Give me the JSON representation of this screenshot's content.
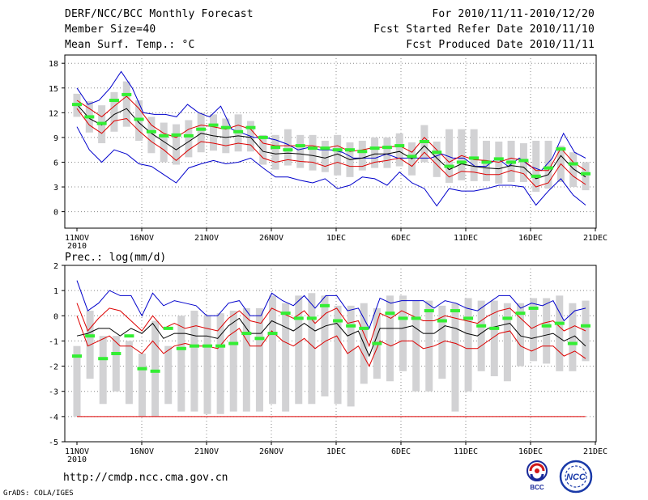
{
  "header": {
    "left": [
      "DERF/NCC/BCC Monthly Forecast",
      "Member Size=40",
      "Mean Surf. Temp.: °C"
    ],
    "right": [
      "For 2010/11/11-2010/12/20",
      "Fcst Started Refer Date 2010/11/10",
      "Fcst Produced Date 2010/11/11"
    ]
  },
  "footer": {
    "url": "http://cmdp.ncc.cma.gov.cn",
    "credit": "GrADS: COLA/IGES"
  },
  "logos": {
    "bcc": "BCC",
    "ncc": "NCC"
  },
  "colors": {
    "box": "#d2d2d4",
    "envelope": "#0000cc",
    "spread": "#dd0000",
    "mean": "#000000",
    "observed": "#33ee33",
    "grid": "#888888"
  },
  "chart_data": [
    {
      "type": "line",
      "title": "Mean Surf. Temp.: °C",
      "x_tick_labels": [
        "11NOV",
        "16NOV",
        "21NOV",
        "26NOV",
        "1DEC",
        "6DEC",
        "11DEC",
        "16DEC",
        "21DEC"
      ],
      "x_year_label": "2010",
      "ylim": [
        -2,
        19
      ],
      "yticks": [
        0,
        3,
        6,
        9,
        12,
        15,
        18
      ],
      "series": [
        {
          "name": "max",
          "values": [
            15,
            13,
            13.5,
            15,
            17,
            15,
            12,
            11.8,
            11.8,
            11.5,
            13,
            12,
            11.5,
            12.8,
            10,
            9.5,
            9,
            9,
            8.7,
            8.2,
            7.5,
            7.8,
            7.5,
            7.5,
            7.2,
            6.5,
            6.5,
            6.5,
            7,
            6.5,
            6.5,
            6.5,
            6.5,
            7,
            6.5,
            6.5,
            5.5,
            5.5,
            6.5,
            5.5,
            6.5,
            5.5,
            5,
            6.5,
            9.5,
            7.2,
            6.5
          ]
        },
        {
          "name": "upper",
          "values": [
            13.5,
            12.5,
            11.5,
            12.8,
            14,
            12.5,
            10.5,
            9.5,
            9,
            10,
            10.5,
            10.3,
            10,
            10.5,
            10,
            8.3,
            8,
            8,
            8,
            8,
            7.7,
            8,
            7.3,
            7.5,
            7.8,
            7.8,
            8,
            7.2,
            9,
            7.5,
            6,
            6.8,
            6.3,
            6.2,
            6,
            6.5,
            6.2,
            5,
            5,
            7.7,
            6,
            5
          ]
        },
        {
          "name": "mean",
          "values": [
            13,
            11.3,
            10.5,
            11.8,
            12.5,
            10.8,
            9.5,
            8.5,
            7.5,
            8.5,
            9.5,
            9.2,
            9,
            9.2,
            9,
            7.3,
            7,
            7.1,
            7,
            6.8,
            6.5,
            7,
            6.3,
            6.5,
            7,
            7,
            7.3,
            6.4,
            8,
            6.5,
            5.1,
            5.8,
            5.5,
            5.3,
            5.2,
            5.6,
            5.4,
            4,
            4.5,
            6.8,
            5.2,
            4.2
          ]
        },
        {
          "name": "lower",
          "values": [
            12.5,
            10.5,
            9.5,
            11,
            11.3,
            9.8,
            8.5,
            7.5,
            6.2,
            7.5,
            8.5,
            8.3,
            8,
            8.3,
            8.1,
            6.5,
            6,
            6.3,
            6.1,
            6,
            5.5,
            6,
            5.5,
            5.5,
            6,
            6.2,
            6.5,
            5.5,
            7.2,
            5.7,
            4.2,
            4.9,
            4.8,
            4.5,
            4.5,
            5,
            4.6,
            3,
            3.5,
            5.8,
            4.3,
            3.3
          ]
        },
        {
          "name": "min",
          "values": [
            10.3,
            7.5,
            6,
            7.5,
            7,
            5.8,
            5.5,
            4.5,
            3.5,
            5.3,
            5.8,
            6.2,
            5.8,
            6,
            6.5,
            5.3,
            4.2,
            4.2,
            3.8,
            3.5,
            4,
            2.8,
            3.2,
            4.2,
            4,
            3.2,
            4.8,
            3.5,
            2.8,
            0.7,
            2.8,
            2.5,
            2.5,
            2.8,
            3.2,
            3.2,
            3,
            0.8,
            2.5,
            4,
            2,
            0.8
          ]
        },
        {
          "name": "observed",
          "values": [
            13,
            11.5,
            10.7,
            13.5,
            14.2,
            11.2,
            9.7,
            9.2,
            9.3,
            9.2,
            10,
            10.5,
            10.2,
            9.7,
            10.2,
            9,
            7.8,
            7.5,
            8,
            7.7,
            7.7,
            7.5,
            7.5,
            7.3,
            7.7,
            7.8,
            8,
            6.7,
            8.5,
            7.2,
            5.5,
            6,
            6.5,
            6,
            6.4,
            6,
            6.2,
            4.3,
            5.3,
            7.6,
            5.8,
            4.6
          ]
        },
        {
          "name": "box_high",
          "values": [
            14.3,
            13.4,
            12.9,
            14.5,
            15.8,
            13.5,
            11.5,
            10.8,
            10.6,
            11.1,
            12,
            11.8,
            11.3,
            11.8,
            11,
            9.3,
            9.3,
            10,
            9.3,
            9.3,
            8.6,
            9.3,
            8.4,
            8.6,
            9,
            9,
            9.5,
            8.4,
            10.5,
            8.5,
            10,
            10,
            10,
            8.6,
            8.5,
            8.6,
            8.3,
            8.6,
            8.6,
            8,
            7.2,
            6
          ]
        },
        {
          "name": "box_low",
          "values": [
            11.5,
            9.6,
            8.3,
            9.7,
            10.3,
            8.6,
            7.1,
            6,
            5.7,
            6.6,
            7.2,
            7.4,
            7.1,
            7.3,
            7.3,
            5.7,
            5.1,
            5.6,
            5.3,
            5,
            4.8,
            4.4,
            4.2,
            5,
            5.3,
            5.3,
            5.5,
            4.4,
            6,
            4.2,
            3.5,
            3.8,
            3.7,
            3.7,
            3.4,
            3.6,
            3.6,
            2.4,
            2.8,
            3.6,
            3,
            2.6
          ]
        }
      ]
    },
    {
      "type": "line",
      "title": "Prec.: log(mm/d)",
      "x_tick_labels": [
        "11NOV",
        "16NOV",
        "21NOV",
        "26NOV",
        "1DEC",
        "6DEC",
        "11DEC",
        "16DEC",
        "21DEC"
      ],
      "x_year_label": "2010",
      "ylim": [
        -5,
        2
      ],
      "yticks": [
        -5,
        -4,
        -3,
        -2,
        -1,
        0,
        1,
        2
      ],
      "series": [
        {
          "name": "max",
          "values": [
            1.4,
            0.2,
            0.5,
            1,
            0.8,
            0.8,
            0,
            0.9,
            0.4,
            0.6,
            0.5,
            0.4,
            0,
            0,
            0.5,
            0.6,
            0,
            0,
            0.9,
            0.6,
            0.4,
            0.8,
            0.3,
            0.8,
            0.8,
            0.2,
            0.3,
            -0.5,
            0.7,
            0.5,
            0.6,
            0.6,
            0.6,
            0.3,
            0.6,
            0.5,
            0.3,
            0.2,
            0.5,
            0.8,
            0.8,
            0.3,
            0.5,
            0.4,
            0.6,
            -0.2,
            0.2,
            0.3
          ]
        },
        {
          "name": "upper",
          "values": [
            0.5,
            -0.6,
            -0.1,
            0.3,
            0.2,
            -0.2,
            -0.6,
            0,
            -0.5,
            -0.3,
            -0.5,
            -0.4,
            -0.5,
            -0.6,
            -0.1,
            0.2,
            -0.2,
            -0.3,
            0.3,
            0.1,
            -0.1,
            0.2,
            -0.3,
            0.1,
            0.3,
            -0.3,
            -0.2,
            -1.2,
            0.1,
            -0.1,
            0.2,
            0,
            -0.2,
            -0.2,
            0,
            -0.1,
            -0.2,
            -0.3,
            0,
            0.2,
            0.3,
            -0.1,
            -0.5,
            -0.3,
            -0.2,
            -0.6,
            -0.4,
            -0.6
          ]
        },
        {
          "name": "mean",
          "values": [
            -0.8,
            -0.7,
            -0.5,
            -0.5,
            -0.8,
            -0.5,
            -0.7,
            -0.3,
            -0.9,
            -0.7,
            -0.7,
            -0.8,
            -0.8,
            -0.9,
            -0.4,
            -0.1,
            -0.7,
            -0.7,
            -0.2,
            -0.4,
            -0.6,
            -0.3,
            -0.6,
            -0.4,
            -0.3,
            -0.8,
            -0.6,
            -1.6,
            -0.5,
            -0.5,
            -0.5,
            -0.4,
            -0.7,
            -0.7,
            -0.4,
            -0.5,
            -0.7,
            -0.8,
            -0.5,
            -0.4,
            -0.3,
            -0.8,
            -0.9,
            -0.8,
            -0.7,
            -1,
            -0.8,
            -1.2
          ]
        },
        {
          "name": "min",
          "values": [
            0,
            -1.2,
            -1,
            -0.8,
            -1.2,
            -1.2,
            -1.5,
            -1,
            -1.5,
            -1.2,
            -1.1,
            -1.2,
            -1.2,
            -1.3,
            -0.8,
            -0.5,
            -1.2,
            -1.2,
            -0.6,
            -1,
            -1.2,
            -0.9,
            -1.3,
            -1,
            -0.8,
            -1.5,
            -1.2,
            -2,
            -1,
            -1.2,
            -1,
            -1,
            -1.3,
            -1.2,
            -1,
            -1.1,
            -1.3,
            -1.3,
            -1,
            -0.7,
            -0.6,
            -1.2,
            -1.4,
            -1.2,
            -1.2,
            -1.6,
            -1.4,
            -1.7
          ]
        },
        {
          "name": "observed",
          "values": [
            -1.6,
            -0.8,
            -1.7,
            -1.5,
            -0.8,
            -2.1,
            -2.2,
            -0.5,
            -1.3,
            -1.2,
            -1.2,
            -1.2,
            -1.1,
            -0.7,
            -0.9,
            -0.7,
            0.1,
            -0.1,
            -0.1,
            0.4,
            -0.2,
            -0.4,
            -0.5,
            -1.1,
            0.1,
            -0.1,
            -0.1,
            0.2,
            -0.2,
            0.2,
            -0.1,
            -0.4,
            -0.5,
            -0.1,
            0.1,
            0.3,
            -0.4,
            -0.3,
            -1.1,
            -0.4
          ]
        },
        {
          "name": "box_high",
          "values": [
            -1.2,
            0.2,
            -0.8,
            -0.8,
            -1,
            -1.5,
            -0.2,
            -1.2,
            0,
            0.2,
            0,
            0.1,
            0.2,
            0.3,
            0.3,
            0.8,
            0.5,
            0.8,
            0.9,
            0.8,
            0.4,
            0.4,
            0.5,
            0.3,
            0.8,
            0.8,
            0.6,
            0.6,
            0.4,
            0.5,
            0.7,
            0.6,
            0.6,
            0.5,
            0.5,
            0.7,
            0.7,
            0.8,
            0.5,
            0.6
          ]
        },
        {
          "name": "box_low",
          "values": [
            -4,
            -2.5,
            -3.5,
            -3,
            -3.5,
            -4,
            -4,
            -3.5,
            -3.8,
            -3.8,
            -3.9,
            -3.9,
            -3.8,
            -3.8,
            -3.8,
            -3.5,
            -3.8,
            -3.5,
            -3.5,
            -3.2,
            -3.5,
            -3.6,
            -2.7,
            -2.5,
            -2.6,
            -2.2,
            -3,
            -3,
            -2.5,
            -3.8,
            -3,
            -2.2,
            -2.4,
            -2.6,
            -2,
            -1.8,
            -1.9,
            -2.2,
            -2.2,
            -1.8
          ]
        }
      ]
    }
  ]
}
